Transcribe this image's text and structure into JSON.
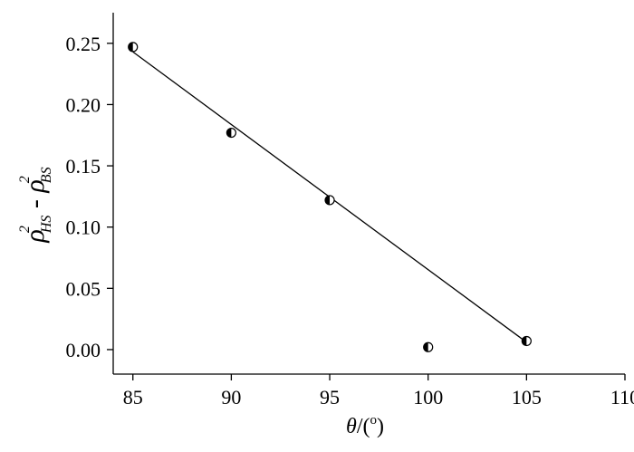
{
  "chart_data": {
    "type": "scatter",
    "title": "",
    "xlabel": {
      "symbol": "θ",
      "text": "/(",
      "unit_sup": "o",
      "close": ")"
    },
    "ylabel": {
      "term1_base": "ρ",
      "term1_sup": "2",
      "term1_sub": "HS",
      "minus": " - ",
      "term2_base": "ρ",
      "term2_sup": "2",
      "term2_sub": "BS"
    },
    "xlim": [
      84,
      110
    ],
    "ylim": [
      -0.02,
      0.275
    ],
    "xticks": [
      85,
      90,
      95,
      100,
      105,
      110
    ],
    "xtick_labels": [
      "85",
      "90",
      "95",
      "100",
      "105",
      "110"
    ],
    "yticks": [
      0.0,
      0.05,
      0.1,
      0.15,
      0.2,
      0.25
    ],
    "ytick_labels": [
      "0.00",
      "0.05",
      "0.10",
      "0.15",
      "0.20",
      "0.25"
    ],
    "grid": false,
    "series": [
      {
        "marker": "half-filled-circle",
        "x": [
          85,
          90,
          95,
          100,
          105
        ],
        "y": [
          0.247,
          0.177,
          0.122,
          0.002,
          0.007
        ]
      }
    ],
    "fit_line": {
      "x": [
        85,
        105
      ],
      "y": [
        0.243,
        0.006
      ]
    }
  }
}
